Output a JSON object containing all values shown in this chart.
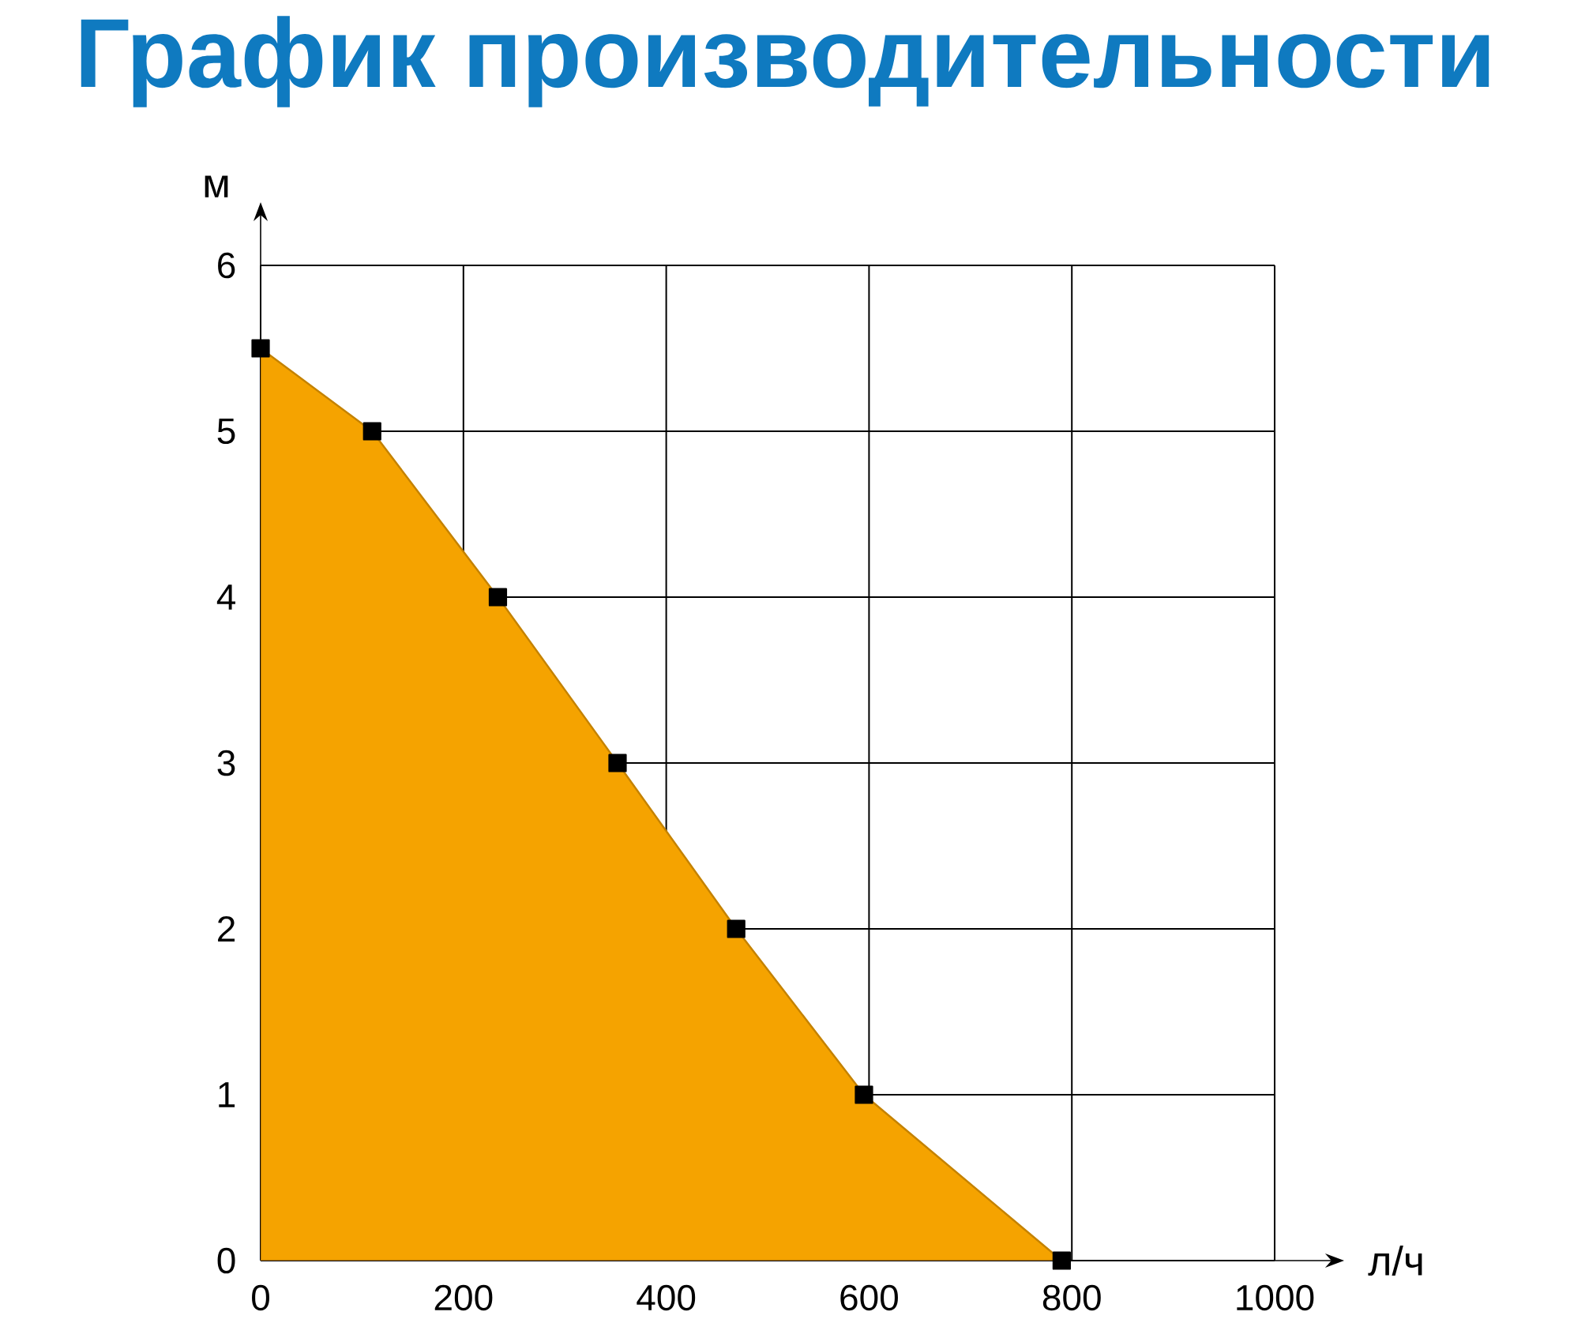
{
  "chart_data": {
    "type": "area",
    "title": "График производительности",
    "xlabel": "л/ч",
    "ylabel": "м",
    "x": [
      0,
      110,
      234,
      352,
      469,
      595,
      790
    ],
    "values": [
      5.5,
      5,
      4,
      3,
      2,
      1,
      0
    ],
    "color": "#f5a300",
    "xlim": [
      0,
      1000
    ],
    "ylim": [
      0,
      6
    ],
    "xticks": [
      0,
      200,
      400,
      600,
      800,
      1000
    ],
    "yticks": [
      0,
      1,
      2,
      3,
      4,
      5,
      6
    ],
    "grid": true,
    "marker": "square"
  }
}
